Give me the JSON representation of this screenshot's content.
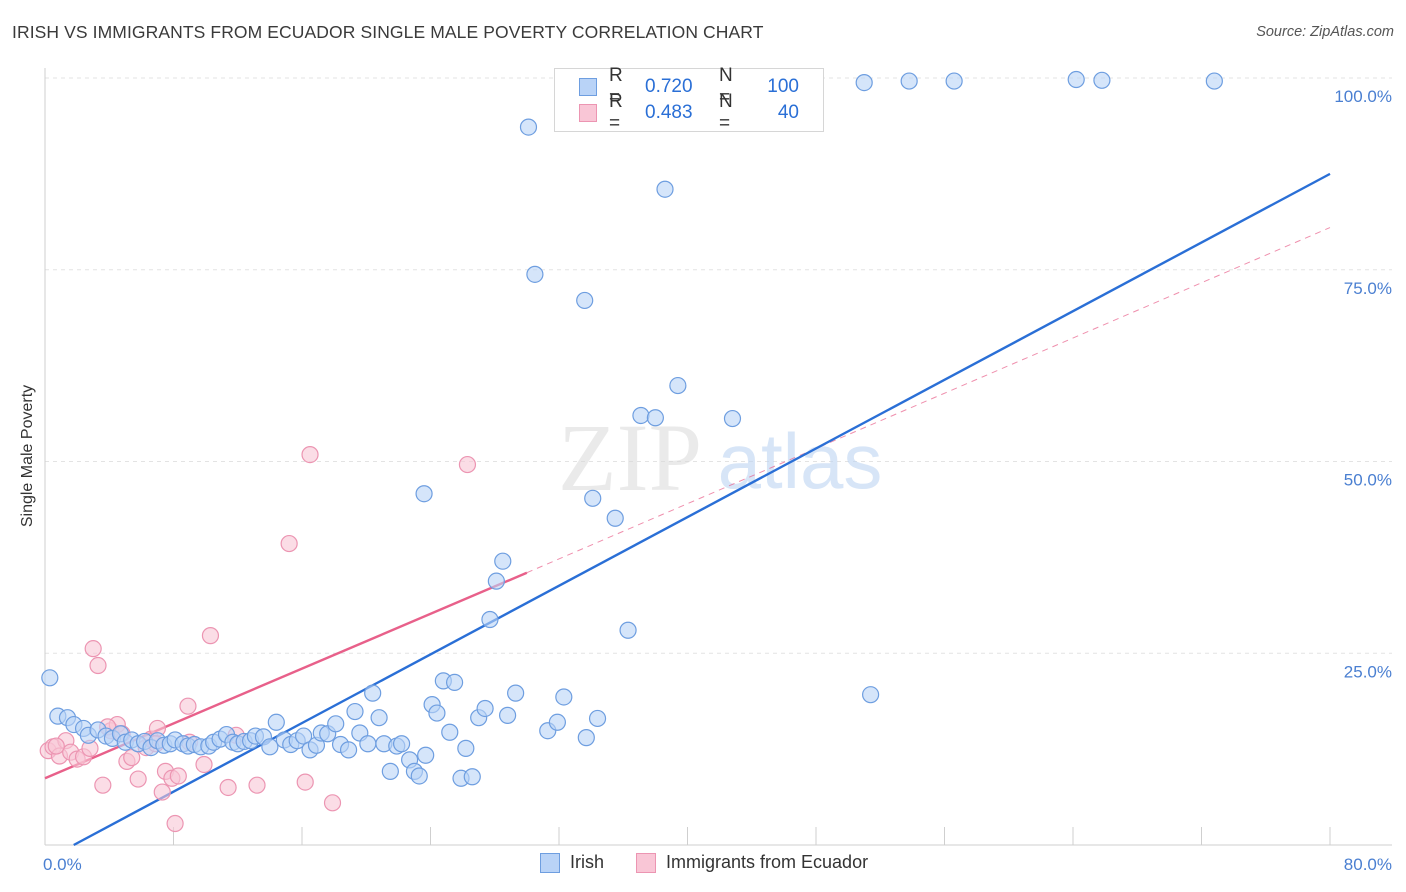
{
  "title": "IRISH VS IMMIGRANTS FROM ECUADOR SINGLE MALE POVERTY CORRELATION CHART",
  "source": "Source: ZipAtlas.com",
  "watermark": {
    "zip": "ZIP",
    "atlas": "atlas"
  },
  "legend": {
    "r_label": "R =",
    "n_label": "N =",
    "rows": [
      {
        "series": "Irish",
        "r": "0.720",
        "n": "100",
        "color": "#6aa0e8"
      },
      {
        "series": "Immigrants from Ecuador",
        "r": "0.483",
        "n": "40",
        "color": "#f08cad"
      }
    ]
  },
  "colors": {
    "irish_fill": "#b9d3f7",
    "irish_stroke": "#6e9ee0",
    "irish_line": "#2a6fd6",
    "ecuador_fill": "#f9c6d6",
    "ecuador_stroke": "#ec95b2",
    "ecuador_line": "#e8608a",
    "tick_label": "#4a7fd1",
    "grid": "#e3e3e3"
  },
  "chart_data": {
    "type": "scatter",
    "title": "IRISH VS IMMIGRANTS FROM ECUADOR SINGLE MALE POVERTY CORRELATION CHART",
    "xlabel": "",
    "ylabel": "Single Male Poverty",
    "xlim": [
      0,
      80
    ],
    "ylim": [
      0,
      100
    ],
    "x_tick_labels": [
      "0.0%",
      "80.0%"
    ],
    "y_ticks": [
      25,
      50,
      75,
      100
    ],
    "y_tick_labels": [
      "25.0%",
      "50.0%",
      "75.0%",
      "100.0%"
    ],
    "grid": "horizontal dashed",
    "legend_position": "top-center",
    "series": [
      {
        "name": "Irish",
        "r": 0.72,
        "n": 100,
        "trend": {
          "x0": 0,
          "y0": -2.0,
          "x1": 80,
          "y1": 87.5,
          "style": "solid"
        },
        "points": [
          [
            0.3,
            21.8
          ],
          [
            0.8,
            16.8
          ],
          [
            1.4,
            16.6
          ],
          [
            1.8,
            15.7
          ],
          [
            2.4,
            15.2
          ],
          [
            2.7,
            14.3
          ],
          [
            3.3,
            15.0
          ],
          [
            3.8,
            14.2
          ],
          [
            4.2,
            13.9
          ],
          [
            4.7,
            14.5
          ],
          [
            5.0,
            13.4
          ],
          [
            5.4,
            13.7
          ],
          [
            5.8,
            13.2
          ],
          [
            6.2,
            13.5
          ],
          [
            6.6,
            12.7
          ],
          [
            7.0,
            13.6
          ],
          [
            7.4,
            13.0
          ],
          [
            7.8,
            13.2
          ],
          [
            8.1,
            13.7
          ],
          [
            8.6,
            13.2
          ],
          [
            8.9,
            12.9
          ],
          [
            9.3,
            13.1
          ],
          [
            9.7,
            12.8
          ],
          [
            10.2,
            12.9
          ],
          [
            10.5,
            13.4
          ],
          [
            10.9,
            13.8
          ],
          [
            11.3,
            14.4
          ],
          [
            11.7,
            13.4
          ],
          [
            12.0,
            13.2
          ],
          [
            12.4,
            13.5
          ],
          [
            12.8,
            13.6
          ],
          [
            13.1,
            14.2
          ],
          [
            13.6,
            14.1
          ],
          [
            14.0,
            12.8
          ],
          [
            14.4,
            16.0
          ],
          [
            14.9,
            13.7
          ],
          [
            15.3,
            13.1
          ],
          [
            15.7,
            13.6
          ],
          [
            16.1,
            14.2
          ],
          [
            16.5,
            12.4
          ],
          [
            16.9,
            13.0
          ],
          [
            17.2,
            14.6
          ],
          [
            17.6,
            14.5
          ],
          [
            18.1,
            15.8
          ],
          [
            18.4,
            13.1
          ],
          [
            18.9,
            12.4
          ],
          [
            19.3,
            17.4
          ],
          [
            19.6,
            14.6
          ],
          [
            20.1,
            13.2
          ],
          [
            20.4,
            19.8
          ],
          [
            20.8,
            16.6
          ],
          [
            21.1,
            13.2
          ],
          [
            21.5,
            9.6
          ],
          [
            21.9,
            12.9
          ],
          [
            22.2,
            13.2
          ],
          [
            22.7,
            11.1
          ],
          [
            23.0,
            9.6
          ],
          [
            23.3,
            9.0
          ],
          [
            23.7,
            11.7
          ],
          [
            24.1,
            18.3
          ],
          [
            24.4,
            17.2
          ],
          [
            24.8,
            21.4
          ],
          [
            25.2,
            14.7
          ],
          [
            25.5,
            21.2
          ],
          [
            25.9,
            8.7
          ],
          [
            26.2,
            12.6
          ],
          [
            26.6,
            8.9
          ],
          [
            27.0,
            16.6
          ],
          [
            27.4,
            17.8
          ],
          [
            27.7,
            29.4
          ],
          [
            28.1,
            34.4
          ],
          [
            28.5,
            37.0
          ],
          [
            28.8,
            16.9
          ],
          [
            29.3,
            19.8
          ],
          [
            30.1,
            93.6
          ],
          [
            30.5,
            74.4
          ],
          [
            31.3,
            14.9
          ],
          [
            31.9,
            16.0
          ],
          [
            32.3,
            19.3
          ],
          [
            33.6,
            71.0
          ],
          [
            33.7,
            14.0
          ],
          [
            34.1,
            45.2
          ],
          [
            34.4,
            16.5
          ],
          [
            35.5,
            42.6
          ],
          [
            36.3,
            28.0
          ],
          [
            37.1,
            56.0
          ],
          [
            38.0,
            55.7
          ],
          [
            38.6,
            85.5
          ],
          [
            39.4,
            59.9
          ],
          [
            42.8,
            55.6
          ],
          [
            51.4,
            19.6
          ],
          [
            23.6,
            45.8
          ],
          [
            35.0,
            99.8
          ],
          [
            33.4,
            99.5
          ],
          [
            51.0,
            99.4
          ],
          [
            53.8,
            99.6
          ],
          [
            56.6,
            99.6
          ],
          [
            64.2,
            99.8
          ],
          [
            65.8,
            99.7
          ],
          [
            72.8,
            99.6
          ]
        ]
      },
      {
        "name": "Immigrants from Ecuador",
        "r": 0.483,
        "n": 40,
        "trend": {
          "x0": 0,
          "y0": 8.7,
          "x1": 30.0,
          "y1": 35.5,
          "style": "solid",
          "extension": {
            "x1": 80,
            "y1": 80.5,
            "style": "dashed"
          }
        },
        "points": [
          [
            0.2,
            12.3
          ],
          [
            0.5,
            12.8
          ],
          [
            0.9,
            11.6
          ],
          [
            1.3,
            13.6
          ],
          [
            1.6,
            12.1
          ],
          [
            2.0,
            11.2
          ],
          [
            2.4,
            11.5
          ],
          [
            2.8,
            12.6
          ],
          [
            3.0,
            25.6
          ],
          [
            3.3,
            23.4
          ],
          [
            3.6,
            7.8
          ],
          [
            4.1,
            14.9
          ],
          [
            4.5,
            15.7
          ],
          [
            4.8,
            14.5
          ],
          [
            5.1,
            10.9
          ],
          [
            5.4,
            11.4
          ],
          [
            5.8,
            8.6
          ],
          [
            6.3,
            12.7
          ],
          [
            6.6,
            13.8
          ],
          [
            7.0,
            15.2
          ],
          [
            7.3,
            6.9
          ],
          [
            7.5,
            9.6
          ],
          [
            7.9,
            8.7
          ],
          [
            8.1,
            2.8
          ],
          [
            8.3,
            9.0
          ],
          [
            8.9,
            18.1
          ],
          [
            9.0,
            13.4
          ],
          [
            9.9,
            10.5
          ],
          [
            10.3,
            27.3
          ],
          [
            11.4,
            7.5
          ],
          [
            11.9,
            14.3
          ],
          [
            13.2,
            7.8
          ],
          [
            15.2,
            39.3
          ],
          [
            16.2,
            8.2
          ],
          [
            16.5,
            50.9
          ],
          [
            17.9,
            5.5
          ],
          [
            26.3,
            49.6
          ],
          [
            6.9,
            13.2
          ],
          [
            3.9,
            15.4
          ],
          [
            0.7,
            12.9
          ]
        ]
      }
    ]
  }
}
